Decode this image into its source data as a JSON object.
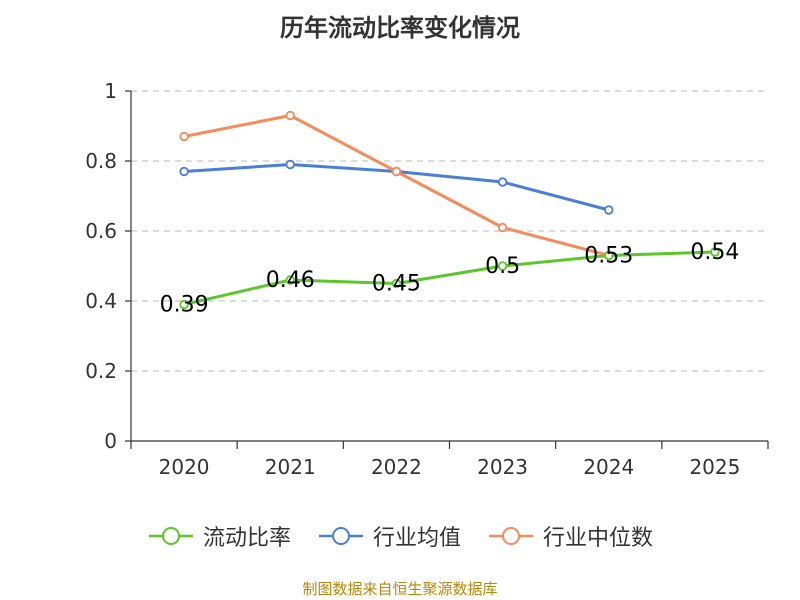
{
  "colors": {
    "current_ratio": "#5cc72a",
    "industry_avg": "#4a7fd8",
    "industry_median": "#f58b5a",
    "axis": "#333333",
    "grid": "#c8c8c8",
    "source": "#b8860b"
  },
  "source_text": "制图数据来自恒生聚源数据库",
  "chart_data": {
    "type": "line",
    "title": "历年流动比率变化情况",
    "categories": [
      "2020",
      "2021",
      "2022",
      "2023",
      "2024",
      "2025"
    ],
    "y_ticks": [
      "0",
      "0.2",
      "0.4",
      "0.6",
      "0.8",
      "1"
    ],
    "ylim": [
      0,
      1
    ],
    "grid": true,
    "legend_position": "bottom",
    "series": [
      {
        "name": "流动比率",
        "key": "current_ratio",
        "values": [
          0.39,
          0.46,
          0.45,
          0.5,
          0.53,
          0.54
        ],
        "labels": [
          "0.39",
          "0.46",
          "0.45",
          "0.5",
          "0.53",
          "0.54"
        ]
      },
      {
        "name": "行业均值",
        "key": "industry_avg",
        "values": [
          0.77,
          0.79,
          0.77,
          0.74,
          0.66,
          null
        ]
      },
      {
        "name": "行业中位数",
        "key": "industry_median",
        "values": [
          0.87,
          0.93,
          0.77,
          0.61,
          0.53,
          null
        ]
      }
    ]
  }
}
